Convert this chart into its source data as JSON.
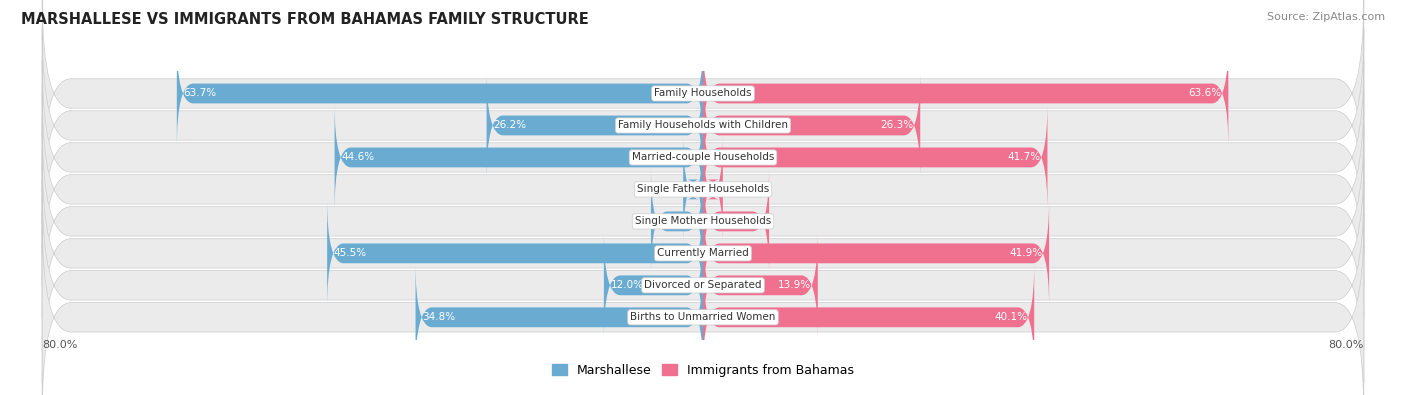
{
  "title": "MARSHALLESE VS IMMIGRANTS FROM BAHAMAS FAMILY STRUCTURE",
  "source": "Source: ZipAtlas.com",
  "categories": [
    "Family Households",
    "Family Households with Children",
    "Married-couple Households",
    "Single Father Households",
    "Single Mother Households",
    "Currently Married",
    "Divorced or Separated",
    "Births to Unmarried Women"
  ],
  "marshallese": [
    63.7,
    26.2,
    44.6,
    2.4,
    6.3,
    45.5,
    12.0,
    34.8
  ],
  "bahamas": [
    63.6,
    26.3,
    41.7,
    2.4,
    8.0,
    41.9,
    13.9,
    40.1
  ],
  "max_val": 80.0,
  "blue_color": "#6aabd2",
  "pink_color": "#f07090",
  "blue_light": "#b8d4ea",
  "pink_light": "#f4b0c8",
  "label_blue": "Marshallese",
  "label_pink": "Immigrants from Bahamas",
  "x_min_label": "80.0%",
  "x_max_label": "80.0%",
  "bg_row_color": "#ebebeb",
  "bar_height": 0.62,
  "title_fontsize": 10.5,
  "label_fontsize": 7.5,
  "cat_fontsize": 7.5
}
